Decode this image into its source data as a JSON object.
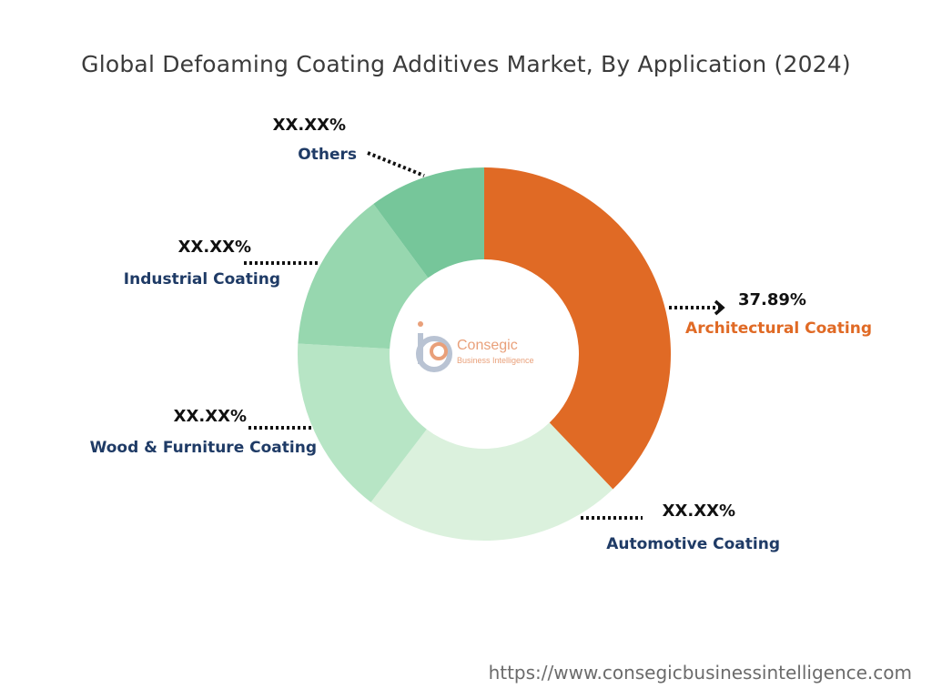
{
  "title": "Global Defoaming Coating Additives Market, By Application (2024)",
  "footer_url": "https://www.consegicbusinessintelligence.com",
  "logo": {
    "name": "Consegic",
    "tagline": "Business Intelligence"
  },
  "colors": {
    "label_dark": "#1f3b66",
    "highlight": "#e06a25",
    "arrow": "#111111"
  },
  "chart_data": {
    "type": "pie",
    "title": "Global Defoaming Coating Additives Market, By Application (2024)",
    "slices": [
      {
        "label": "Architectural Coating",
        "value_label": "37.89%",
        "value": 37.89,
        "color": "#e06a25",
        "highlight": true
      },
      {
        "label": "Automotive Coating",
        "value_label": "XX.XX%",
        "value": 22.5,
        "color": "#dbf1dd",
        "highlight": false
      },
      {
        "label": "Wood & Furniture Coating",
        "value_label": "XX.XX%",
        "value": 15.5,
        "color": "#b7e5c5",
        "highlight": false
      },
      {
        "label": "Industrial Coating",
        "value_label": "XX.XX%",
        "value": 14.0,
        "color": "#97d7af",
        "highlight": false
      },
      {
        "label": "Others",
        "value_label": "XX.XX%",
        "value": 10.11,
        "color": "#76c69a",
        "highlight": false
      }
    ]
  }
}
